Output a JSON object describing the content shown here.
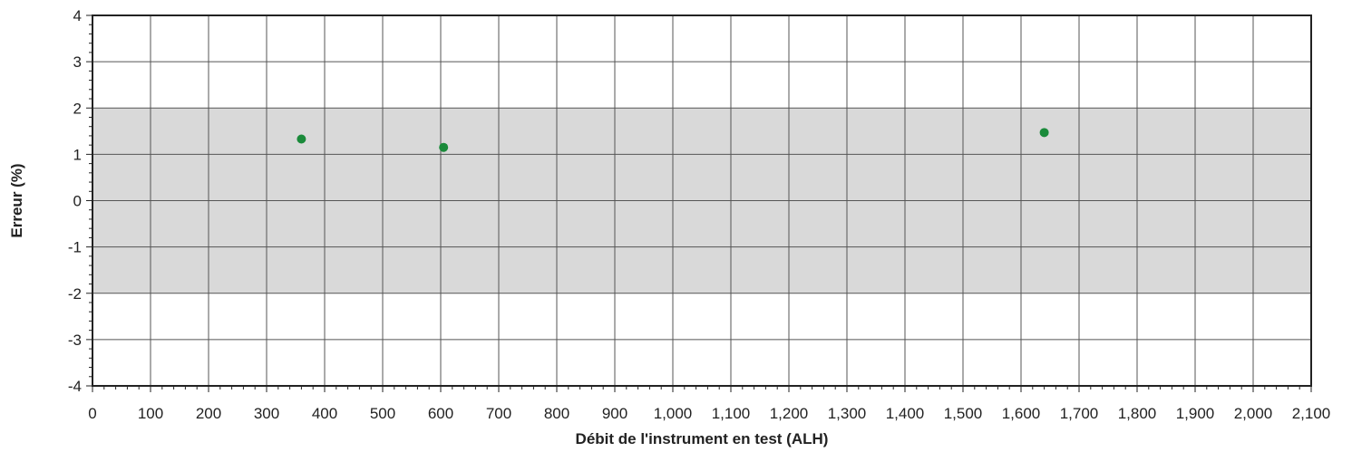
{
  "chart_data": {
    "type": "scatter",
    "title": "",
    "xlabel": "Débit de l'instrument en test (ALH)",
    "ylabel": "Erreur (%)",
    "xlim": [
      0,
      2100
    ],
    "ylim": [
      -4,
      4
    ],
    "x_ticks": [
      0,
      100,
      200,
      300,
      400,
      500,
      600,
      700,
      800,
      900,
      1000,
      1100,
      1200,
      1300,
      1400,
      1500,
      1600,
      1700,
      1800,
      1900,
      2000,
      2100
    ],
    "x_tick_labels": [
      "0",
      "100",
      "200",
      "300",
      "400",
      "500",
      "600",
      "700",
      "800",
      "900",
      "1,000",
      "1,100",
      "1,200",
      "1,300",
      "1,400",
      "1,500",
      "1,600",
      "1,700",
      "1,800",
      "1,900",
      "2,000",
      "2,100"
    ],
    "y_ticks": [
      4,
      3,
      2,
      1,
      0,
      -1,
      -2,
      -3,
      -4
    ],
    "y_tick_labels": [
      "4",
      "3",
      "2",
      "1",
      "0",
      "-1",
      "-2",
      "-3",
      "-4"
    ],
    "tolerance_band": [
      -2,
      2
    ],
    "grid": true,
    "series": [
      {
        "color": "#1a8a3a",
        "points": [
          {
            "x": 360,
            "y": 1.33
          },
          {
            "x": 605,
            "y": 1.15
          },
          {
            "x": 1640,
            "y": 1.47
          }
        ]
      }
    ],
    "colors": {
      "band": "#d9d9d9",
      "grid": "#555555",
      "frame": "#222222"
    }
  }
}
